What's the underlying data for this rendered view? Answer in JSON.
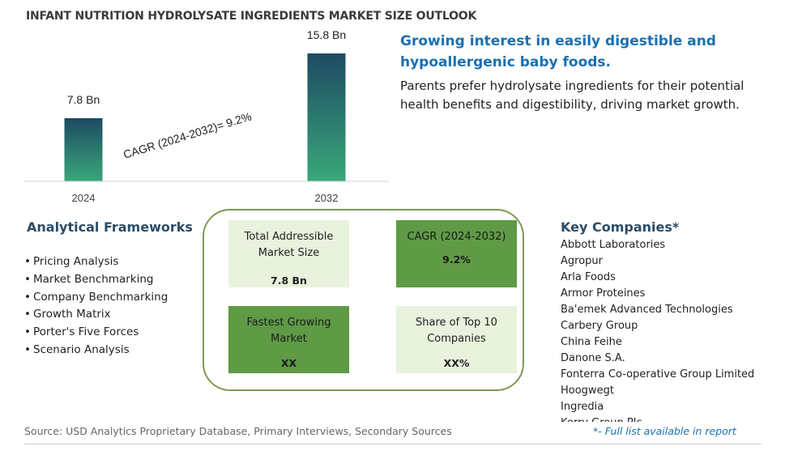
{
  "title": "INFANT NUTRITION HYDROLYSATE INGREDIENTS MARKET SIZE OUTLOOK",
  "chart_data": {
    "type": "bar",
    "categories": [
      "2024",
      "2032"
    ],
    "values": [
      7.8,
      15.8
    ],
    "data_labels": [
      "7.8 Bn",
      "15.8 Bn"
    ],
    "ylim": [
      0,
      15.8
    ],
    "annotation": "CAGR (2024-2032)=  9.2%",
    "grid": false,
    "bar_gradient": [
      "#1e4a63",
      "#3aa87a"
    ]
  },
  "headline": "Growing interest in easily digestible and hypoallergenic baby foods.",
  "description": "Parents prefer hydrolysate ingredients for their potential health benefits and digestibility, driving market growth.",
  "frameworks": {
    "title": "Analytical Frameworks",
    "items": [
      "Pricing Analysis",
      "Market Benchmarking",
      "Company Benchmarking",
      "Growth Matrix",
      "Porter's Five Forces",
      "Scenario Analysis"
    ]
  },
  "cards": {
    "tam": {
      "label": "Total Addressible Market Size",
      "value": "7.8 Bn"
    },
    "cagr": {
      "label": "CAGR (2024-2032)",
      "value": "9.2%"
    },
    "fastest": {
      "label": "Fastest Growing Market",
      "value": "XX"
    },
    "share": {
      "label": "Share of Top 10 Companies",
      "value": "XX%"
    }
  },
  "key_companies": {
    "title": "Key Companies*",
    "items": [
      "Abbott Laboratories",
      "Agropur",
      "Arla Foods",
      "Armor Proteines",
      "Ba'emek Advanced Technologies",
      "Carbery Group",
      "China Feihe",
      "Danone S.A.",
      "Fonterra Co-operative Group Limited",
      "Hoogwegt",
      "Ingredia",
      "Kerry Group Plc"
    ]
  },
  "source": "Source: USD Analytics Proprietary Database, Primary Interviews, Secondary Sources",
  "footnote": "*- Full list available in report",
  "colors": {
    "headline": "#1a70b0",
    "card_light": "#e8f2dc",
    "card_dark": "#5f9a45",
    "panel_border": "#7e9a52"
  }
}
